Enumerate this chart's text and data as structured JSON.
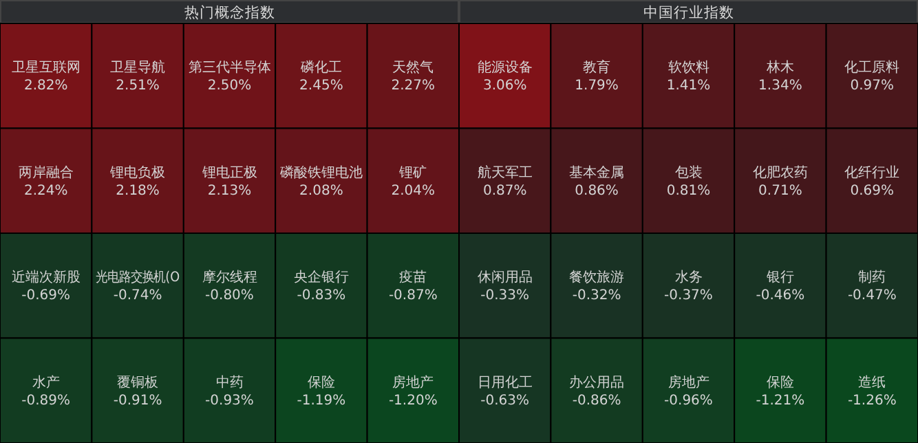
{
  "chart_data": [
    {
      "type": "other",
      "title": "热门概念指数",
      "categories": [
        "卫星互联网",
        "卫星导航",
        "第三代半导体",
        "磷化工",
        "天然气",
        "两岸融合",
        "锂电负极",
        "锂电正极",
        "磷酸铁锂电池",
        "锂矿",
        "近端次新股",
        "光电路交换机(O",
        "摩尔线程",
        "央企银行",
        "疫苗",
        "水产",
        "覆铜板",
        "中药",
        "保险",
        "房地产"
      ],
      "values": [
        2.82,
        2.51,
        2.5,
        2.45,
        2.27,
        2.24,
        2.18,
        2.13,
        2.08,
        2.04,
        -0.69,
        -0.74,
        -0.8,
        -0.83,
        -0.87,
        -0.89,
        -0.91,
        -0.93,
        -1.19,
        -1.2
      ],
      "value_labels": [
        "2.82%",
        "2.51%",
        "2.50%",
        "2.45%",
        "2.27%",
        "2.24%",
        "2.18%",
        "2.13%",
        "2.08%",
        "2.04%",
        "-0.69%",
        "-0.74%",
        "-0.80%",
        "-0.83%",
        "-0.87%",
        "-0.89%",
        "-0.91%",
        "-0.93%",
        "-1.19%",
        "-1.20%"
      ]
    },
    {
      "type": "other",
      "title": "中国行业指数",
      "categories": [
        "能源设备",
        "教育",
        "软饮料",
        "林木",
        "化工原料",
        "航天军工",
        "基本金属",
        "包装",
        "化肥农药",
        "化纤行业",
        "休闲用品",
        "餐饮旅游",
        "水务",
        "银行",
        "制药",
        "日用化工",
        "办公用品",
        "房地产",
        "保险",
        "造纸"
      ],
      "values": [
        3.06,
        1.79,
        1.41,
        1.34,
        0.97,
        0.87,
        0.86,
        0.81,
        0.71,
        0.69,
        -0.33,
        -0.32,
        -0.37,
        -0.46,
        -0.47,
        -0.63,
        -0.86,
        -0.96,
        -1.21,
        -1.26
      ],
      "value_labels": [
        "3.06%",
        "1.79%",
        "1.41%",
        "1.34%",
        "0.97%",
        "0.87%",
        "0.86%",
        "0.81%",
        "0.71%",
        "0.69%",
        "-0.33%",
        "-0.32%",
        "-0.37%",
        "-0.46%",
        "-0.47%",
        "-0.63%",
        "-0.86%",
        "-0.96%",
        "-1.21%",
        "-1.26%"
      ]
    }
  ]
}
